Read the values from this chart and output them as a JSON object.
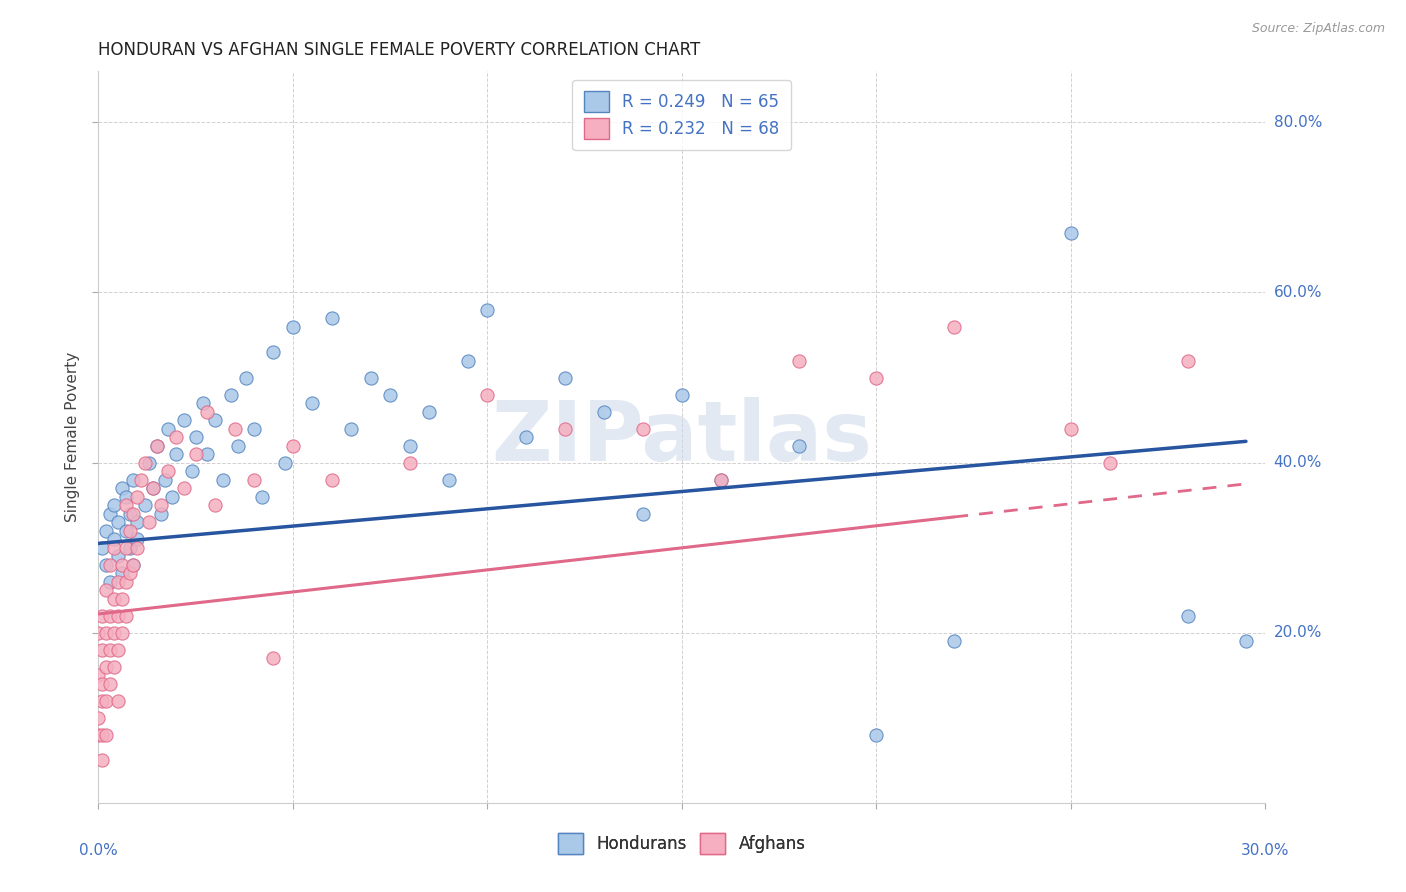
{
  "title": "HONDURAN VS AFGHAN SINGLE FEMALE POVERTY CORRELATION CHART",
  "source": "Source: ZipAtlas.com",
  "ylabel": "Single Female Poverty",
  "ylabel_ticks": [
    "20.0%",
    "40.0%",
    "60.0%",
    "80.0%"
  ],
  "xlim": [
    0.0,
    0.3
  ],
  "ylim": [
    0.0,
    0.86
  ],
  "honduran_R": "0.249",
  "honduran_N": "65",
  "afghan_R": "0.232",
  "afghan_N": "68",
  "honduran_color": "#aac8e8",
  "afghan_color": "#f5afc0",
  "honduran_edge_color": "#5585c0",
  "afghan_edge_color": "#e06888",
  "honduran_line_color": "#2855a0",
  "afghan_line_color": "#e06888",
  "watermark_color": "#ccd8ea",
  "background_color": "#ffffff",
  "grid_color": "#cccccc",
  "honduran_scatter": [
    [
      0.001,
      0.3
    ],
    [
      0.002,
      0.32
    ],
    [
      0.002,
      0.28
    ],
    [
      0.003,
      0.34
    ],
    [
      0.003,
      0.26
    ],
    [
      0.004,
      0.31
    ],
    [
      0.004,
      0.35
    ],
    [
      0.005,
      0.29
    ],
    [
      0.005,
      0.33
    ],
    [
      0.006,
      0.37
    ],
    [
      0.006,
      0.27
    ],
    [
      0.007,
      0.32
    ],
    [
      0.007,
      0.36
    ],
    [
      0.008,
      0.3
    ],
    [
      0.008,
      0.34
    ],
    [
      0.009,
      0.28
    ],
    [
      0.009,
      0.38
    ],
    [
      0.01,
      0.33
    ],
    [
      0.01,
      0.31
    ],
    [
      0.012,
      0.35
    ],
    [
      0.013,
      0.4
    ],
    [
      0.014,
      0.37
    ],
    [
      0.015,
      0.42
    ],
    [
      0.016,
      0.34
    ],
    [
      0.017,
      0.38
    ],
    [
      0.018,
      0.44
    ],
    [
      0.019,
      0.36
    ],
    [
      0.02,
      0.41
    ],
    [
      0.022,
      0.45
    ],
    [
      0.024,
      0.39
    ],
    [
      0.025,
      0.43
    ],
    [
      0.027,
      0.47
    ],
    [
      0.028,
      0.41
    ],
    [
      0.03,
      0.45
    ],
    [
      0.032,
      0.38
    ],
    [
      0.034,
      0.48
    ],
    [
      0.036,
      0.42
    ],
    [
      0.038,
      0.5
    ],
    [
      0.04,
      0.44
    ],
    [
      0.042,
      0.36
    ],
    [
      0.045,
      0.53
    ],
    [
      0.048,
      0.4
    ],
    [
      0.05,
      0.56
    ],
    [
      0.055,
      0.47
    ],
    [
      0.06,
      0.57
    ],
    [
      0.065,
      0.44
    ],
    [
      0.07,
      0.5
    ],
    [
      0.075,
      0.48
    ],
    [
      0.08,
      0.42
    ],
    [
      0.085,
      0.46
    ],
    [
      0.09,
      0.38
    ],
    [
      0.095,
      0.52
    ],
    [
      0.1,
      0.58
    ],
    [
      0.11,
      0.43
    ],
    [
      0.12,
      0.5
    ],
    [
      0.13,
      0.46
    ],
    [
      0.14,
      0.34
    ],
    [
      0.15,
      0.48
    ],
    [
      0.16,
      0.38
    ],
    [
      0.18,
      0.42
    ],
    [
      0.2,
      0.08
    ],
    [
      0.22,
      0.19
    ],
    [
      0.25,
      0.67
    ],
    [
      0.28,
      0.22
    ],
    [
      0.295,
      0.19
    ]
  ],
  "afghan_scatter": [
    [
      0.0,
      0.2
    ],
    [
      0.0,
      0.15
    ],
    [
      0.0,
      0.1
    ],
    [
      0.0,
      0.08
    ],
    [
      0.001,
      0.18
    ],
    [
      0.001,
      0.14
    ],
    [
      0.001,
      0.22
    ],
    [
      0.001,
      0.12
    ],
    [
      0.001,
      0.08
    ],
    [
      0.001,
      0.05
    ],
    [
      0.002,
      0.2
    ],
    [
      0.002,
      0.16
    ],
    [
      0.002,
      0.25
    ],
    [
      0.002,
      0.12
    ],
    [
      0.002,
      0.08
    ],
    [
      0.003,
      0.22
    ],
    [
      0.003,
      0.18
    ],
    [
      0.003,
      0.28
    ],
    [
      0.003,
      0.14
    ],
    [
      0.004,
      0.24
    ],
    [
      0.004,
      0.2
    ],
    [
      0.004,
      0.3
    ],
    [
      0.004,
      0.16
    ],
    [
      0.005,
      0.26
    ],
    [
      0.005,
      0.22
    ],
    [
      0.005,
      0.18
    ],
    [
      0.005,
      0.12
    ],
    [
      0.006,
      0.28
    ],
    [
      0.006,
      0.24
    ],
    [
      0.006,
      0.2
    ],
    [
      0.007,
      0.3
    ],
    [
      0.007,
      0.26
    ],
    [
      0.007,
      0.22
    ],
    [
      0.007,
      0.35
    ],
    [
      0.008,
      0.32
    ],
    [
      0.008,
      0.27
    ],
    [
      0.009,
      0.34
    ],
    [
      0.009,
      0.28
    ],
    [
      0.01,
      0.36
    ],
    [
      0.01,
      0.3
    ],
    [
      0.011,
      0.38
    ],
    [
      0.012,
      0.4
    ],
    [
      0.013,
      0.33
    ],
    [
      0.014,
      0.37
    ],
    [
      0.015,
      0.42
    ],
    [
      0.016,
      0.35
    ],
    [
      0.018,
      0.39
    ],
    [
      0.02,
      0.43
    ],
    [
      0.022,
      0.37
    ],
    [
      0.025,
      0.41
    ],
    [
      0.028,
      0.46
    ],
    [
      0.03,
      0.35
    ],
    [
      0.035,
      0.44
    ],
    [
      0.04,
      0.38
    ],
    [
      0.045,
      0.17
    ],
    [
      0.05,
      0.42
    ],
    [
      0.06,
      0.38
    ],
    [
      0.08,
      0.4
    ],
    [
      0.1,
      0.48
    ],
    [
      0.12,
      0.44
    ],
    [
      0.14,
      0.44
    ],
    [
      0.16,
      0.38
    ],
    [
      0.18,
      0.52
    ],
    [
      0.2,
      0.5
    ],
    [
      0.22,
      0.56
    ],
    [
      0.25,
      0.44
    ],
    [
      0.26,
      0.4
    ],
    [
      0.28,
      0.52
    ]
  ],
  "title_fontsize": 12,
  "label_fontsize": 11,
  "tick_fontsize": 11,
  "legend_fontsize": 12
}
